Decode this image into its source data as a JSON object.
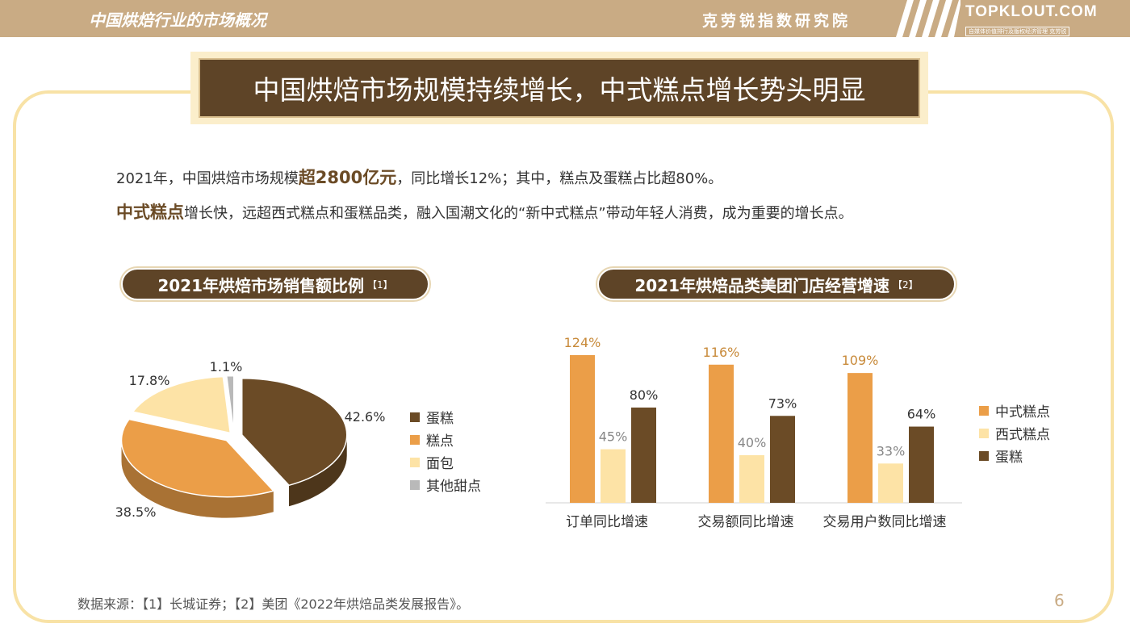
{
  "header": {
    "section_title": "中国烘焙行业的市场概况",
    "org_name": "克劳锐指数研究院",
    "brand_name": "TOPKLOUT.COM",
    "brand_sub": "自媒体价值排行及版权经济管理 克劳锐"
  },
  "headline": "中国烘焙市场规模持续增长，中式糕点增长势头明显",
  "paragraph1": {
    "pre": "2021年，中国烘焙市场规模",
    "bold": "超2800亿元",
    "post": "，同比增长12%；其中，糕点及蛋糕占比超80%。"
  },
  "paragraph2": {
    "bold": "中式糕点",
    "post": "增长快，远超西式糕点和蛋糕品类，融入国潮文化的“新中式糕点”带动年轻人消费，成为重要的增长点。"
  },
  "colors": {
    "dark_brown": "#6b4b26",
    "orange": "#eb9e48",
    "light_yellow": "#fde3a6",
    "gray": "#b9b9b9"
  },
  "chart_data": [
    {
      "type": "pie",
      "title": "2021年烘焙市场销售额比例",
      "title_ref": "【1】",
      "categories": [
        "蛋糕",
        "糕点",
        "面包",
        "其他甜点"
      ],
      "values": [
        42.6,
        38.5,
        17.8,
        1.1
      ],
      "data_labels": [
        "42.6%",
        "38.5%",
        "17.8%",
        "1.1%"
      ],
      "legend_position": "right"
    },
    {
      "type": "bar",
      "title": "2021年烘焙品类美团门店经营增速",
      "title_ref": "【2】",
      "categories": [
        "订单同比增速",
        "交易额同比增速",
        "交易用户数同比增速"
      ],
      "series": [
        {
          "name": "中式糕点",
          "values": [
            124,
            116,
            109
          ],
          "labels": [
            "124%",
            "116%",
            "109%"
          ]
        },
        {
          "name": "西式糕点",
          "values": [
            45,
            40,
            33
          ],
          "labels": [
            "45%",
            "40%",
            "33%"
          ]
        },
        {
          "name": "蛋糕",
          "values": [
            80,
            73,
            64
          ],
          "labels": [
            "80%",
            "73%",
            "64%"
          ]
        }
      ],
      "ylim": [
        0,
        140
      ],
      "grid": false,
      "legend_position": "right"
    }
  ],
  "source": "数据来源：【1】长城证券；【2】美团《2022年烘焙品类发展报告》。",
  "page_number": "6"
}
